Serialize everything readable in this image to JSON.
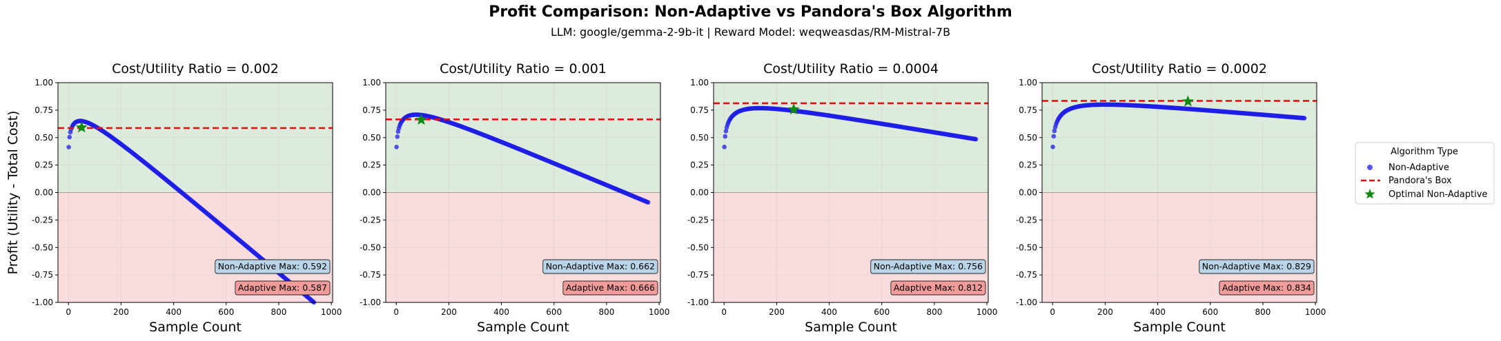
{
  "suptitle": "Profit Comparison: Non-Adaptive vs Pandora's Box Algorithm",
  "subtitle": "LLM: google/gemma-2-9b-it  |  Reward Model: weqweasdas/RM-Mistral-7B",
  "colors": {
    "scatter": "#1f1fe6",
    "pandora": "#e01010",
    "star": "#118811",
    "positive_bg": "#dcebdc",
    "negative_bg": "#f9dcdd",
    "box_nonadaptive": "#b8d4e6",
    "box_adaptive": "#f29b9b"
  },
  "legend": {
    "title": "Algorithm Type",
    "items": [
      "Non-Adaptive",
      "Pandora's Box",
      "Optimal Non-Adaptive"
    ]
  },
  "chart_data": [
    {
      "type": "scatter",
      "title": "Cost/Utility Ratio = 0.002",
      "xlabel": "Sample Count",
      "ylabel": "Profit (Utility - Total Cost)",
      "xlim": [
        -40,
        1005
      ],
      "ylim": [
        -1.0,
        1.0
      ],
      "xticks": [
        0,
        200,
        400,
        600,
        800,
        1000
      ],
      "yticks": [
        -1.0,
        -0.75,
        -0.5,
        -0.25,
        0.0,
        0.25,
        0.5,
        0.75,
        1.0
      ],
      "curve_cost": 0.002,
      "x_max": 960,
      "pandora_level": 0.587,
      "optimal": {
        "x": 50,
        "y": 0.592
      },
      "nonadaptive_max_label": "Non-Adaptive Max: 0.592",
      "adaptive_max_label": "Adaptive Max: 0.587"
    },
    {
      "type": "scatter",
      "title": "Cost/Utility Ratio = 0.001",
      "xlabel": "Sample Count",
      "ylabel": "",
      "xlim": [
        -40,
        1005
      ],
      "ylim": [
        -1.0,
        1.0
      ],
      "xticks": [
        0,
        200,
        400,
        600,
        800,
        1000
      ],
      "yticks": [
        -1.0,
        -0.75,
        -0.5,
        -0.25,
        0.0,
        0.25,
        0.5,
        0.75,
        1.0
      ],
      "curve_cost": 0.001,
      "x_max": 960,
      "pandora_level": 0.666,
      "optimal": {
        "x": 95,
        "y": 0.662
      },
      "nonadaptive_max_label": "Non-Adaptive Max: 0.662",
      "adaptive_max_label": "Adaptive Max: 0.666"
    },
    {
      "type": "scatter",
      "title": "Cost/Utility Ratio = 0.0004",
      "xlabel": "Sample Count",
      "ylabel": "",
      "xlim": [
        -40,
        1005
      ],
      "ylim": [
        -1.0,
        1.0
      ],
      "xticks": [
        0,
        200,
        400,
        600,
        800,
        1000
      ],
      "yticks": [
        -1.0,
        -0.75,
        -0.5,
        -0.25,
        0.0,
        0.25,
        0.5,
        0.75,
        1.0
      ],
      "curve_cost": 0.0004,
      "x_max": 960,
      "pandora_level": 0.812,
      "optimal": {
        "x": 265,
        "y": 0.756
      },
      "nonadaptive_max_label": "Non-Adaptive Max: 0.756",
      "adaptive_max_label": "Adaptive Max: 0.812"
    },
    {
      "type": "scatter",
      "title": "Cost/Utility Ratio = 0.0002",
      "xlabel": "Sample Count",
      "ylabel": "",
      "xlim": [
        -40,
        1005
      ],
      "ylim": [
        -1.0,
        1.0
      ],
      "xticks": [
        0,
        200,
        400,
        600,
        800,
        1000
      ],
      "yticks": [
        -1.0,
        -0.75,
        -0.5,
        -0.25,
        0.0,
        0.25,
        0.5,
        0.75,
        1.0
      ],
      "curve_cost": 0.0002,
      "x_max": 960,
      "pandora_level": 0.834,
      "optimal": {
        "x": 515,
        "y": 0.829
      },
      "nonadaptive_max_label": "Non-Adaptive Max: 0.829",
      "adaptive_max_label": "Adaptive Max: 0.834"
    }
  ]
}
